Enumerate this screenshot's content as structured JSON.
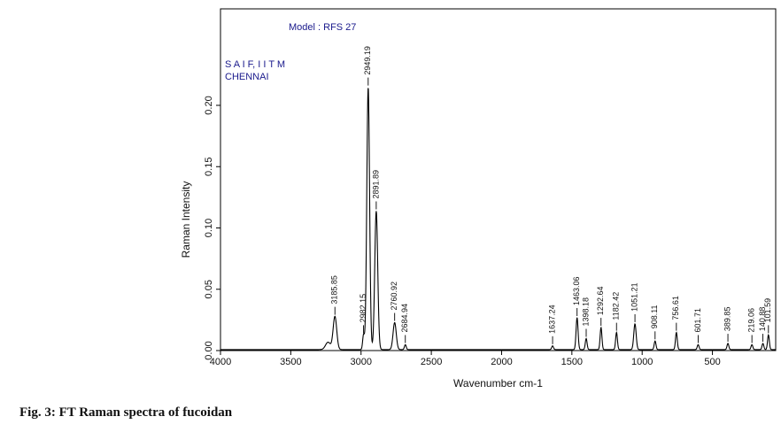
{
  "caption": "Fig. 3: FT Raman spectra of fucoidan",
  "chart_data": {
    "type": "line",
    "title": "",
    "xlabel": "Wavenumber cm-1",
    "ylabel": "Raman Intensity",
    "xlim": [
      4000,
      50
    ],
    "ylim": [
      0,
      0.27
    ],
    "x_ticks": [
      4000,
      3500,
      3000,
      2500,
      2000,
      1500,
      1000,
      500
    ],
    "x_tick_labels": [
      "4000",
      "3500",
      "3000",
      "2500",
      "2000",
      "1500",
      "1000",
      "500"
    ],
    "y_ticks": [
      0.0,
      0.05,
      0.1,
      0.15,
      0.2
    ],
    "y_tick_labels": [
      "0.00",
      "0.05",
      "0.10",
      "0.15",
      "0.20"
    ],
    "annotations": {
      "model": "Model : RFS 27",
      "lab_line1": "S A I F, I I T M",
      "lab_line2": "CHENNAI"
    },
    "line_color": "#000000",
    "annotation_color": "#1a1a8c",
    "peaks": [
      {
        "label": "3185.85",
        "x": 3185.85,
        "y": 0.027
      },
      {
        "label": "2982.15",
        "x": 2982.15,
        "y": 0.012
      },
      {
        "label": "2949.19",
        "x": 2949.19,
        "y": 0.214
      },
      {
        "label": "2891.89",
        "x": 2891.89,
        "y": 0.113
      },
      {
        "label": "2760.92",
        "x": 2760.92,
        "y": 0.022
      },
      {
        "label": "2684.94",
        "x": 2684.94,
        "y": 0.004
      },
      {
        "label": "1637.24",
        "x": 1637.24,
        "y": 0.003
      },
      {
        "label": "1463.06",
        "x": 1463.06,
        "y": 0.026
      },
      {
        "label": "1398.18",
        "x": 1398.18,
        "y": 0.009
      },
      {
        "label": "1292.64",
        "x": 1292.64,
        "y": 0.018
      },
      {
        "label": "1182.42",
        "x": 1182.42,
        "y": 0.014
      },
      {
        "label": "1051.21",
        "x": 1051.21,
        "y": 0.021
      },
      {
        "label": "908.11",
        "x": 908.11,
        "y": 0.007
      },
      {
        "label": "756.61",
        "x": 756.61,
        "y": 0.014
      },
      {
        "label": "601.71",
        "x": 601.71,
        "y": 0.004
      },
      {
        "label": "389.85",
        "x": 389.85,
        "y": 0.005
      },
      {
        "label": "219.06",
        "x": 219.06,
        "y": 0.004
      },
      {
        "label": "140.88",
        "x": 140.88,
        "y": 0.005
      },
      {
        "label": "101.59",
        "x": 101.59,
        "y": 0.012
      }
    ]
  }
}
